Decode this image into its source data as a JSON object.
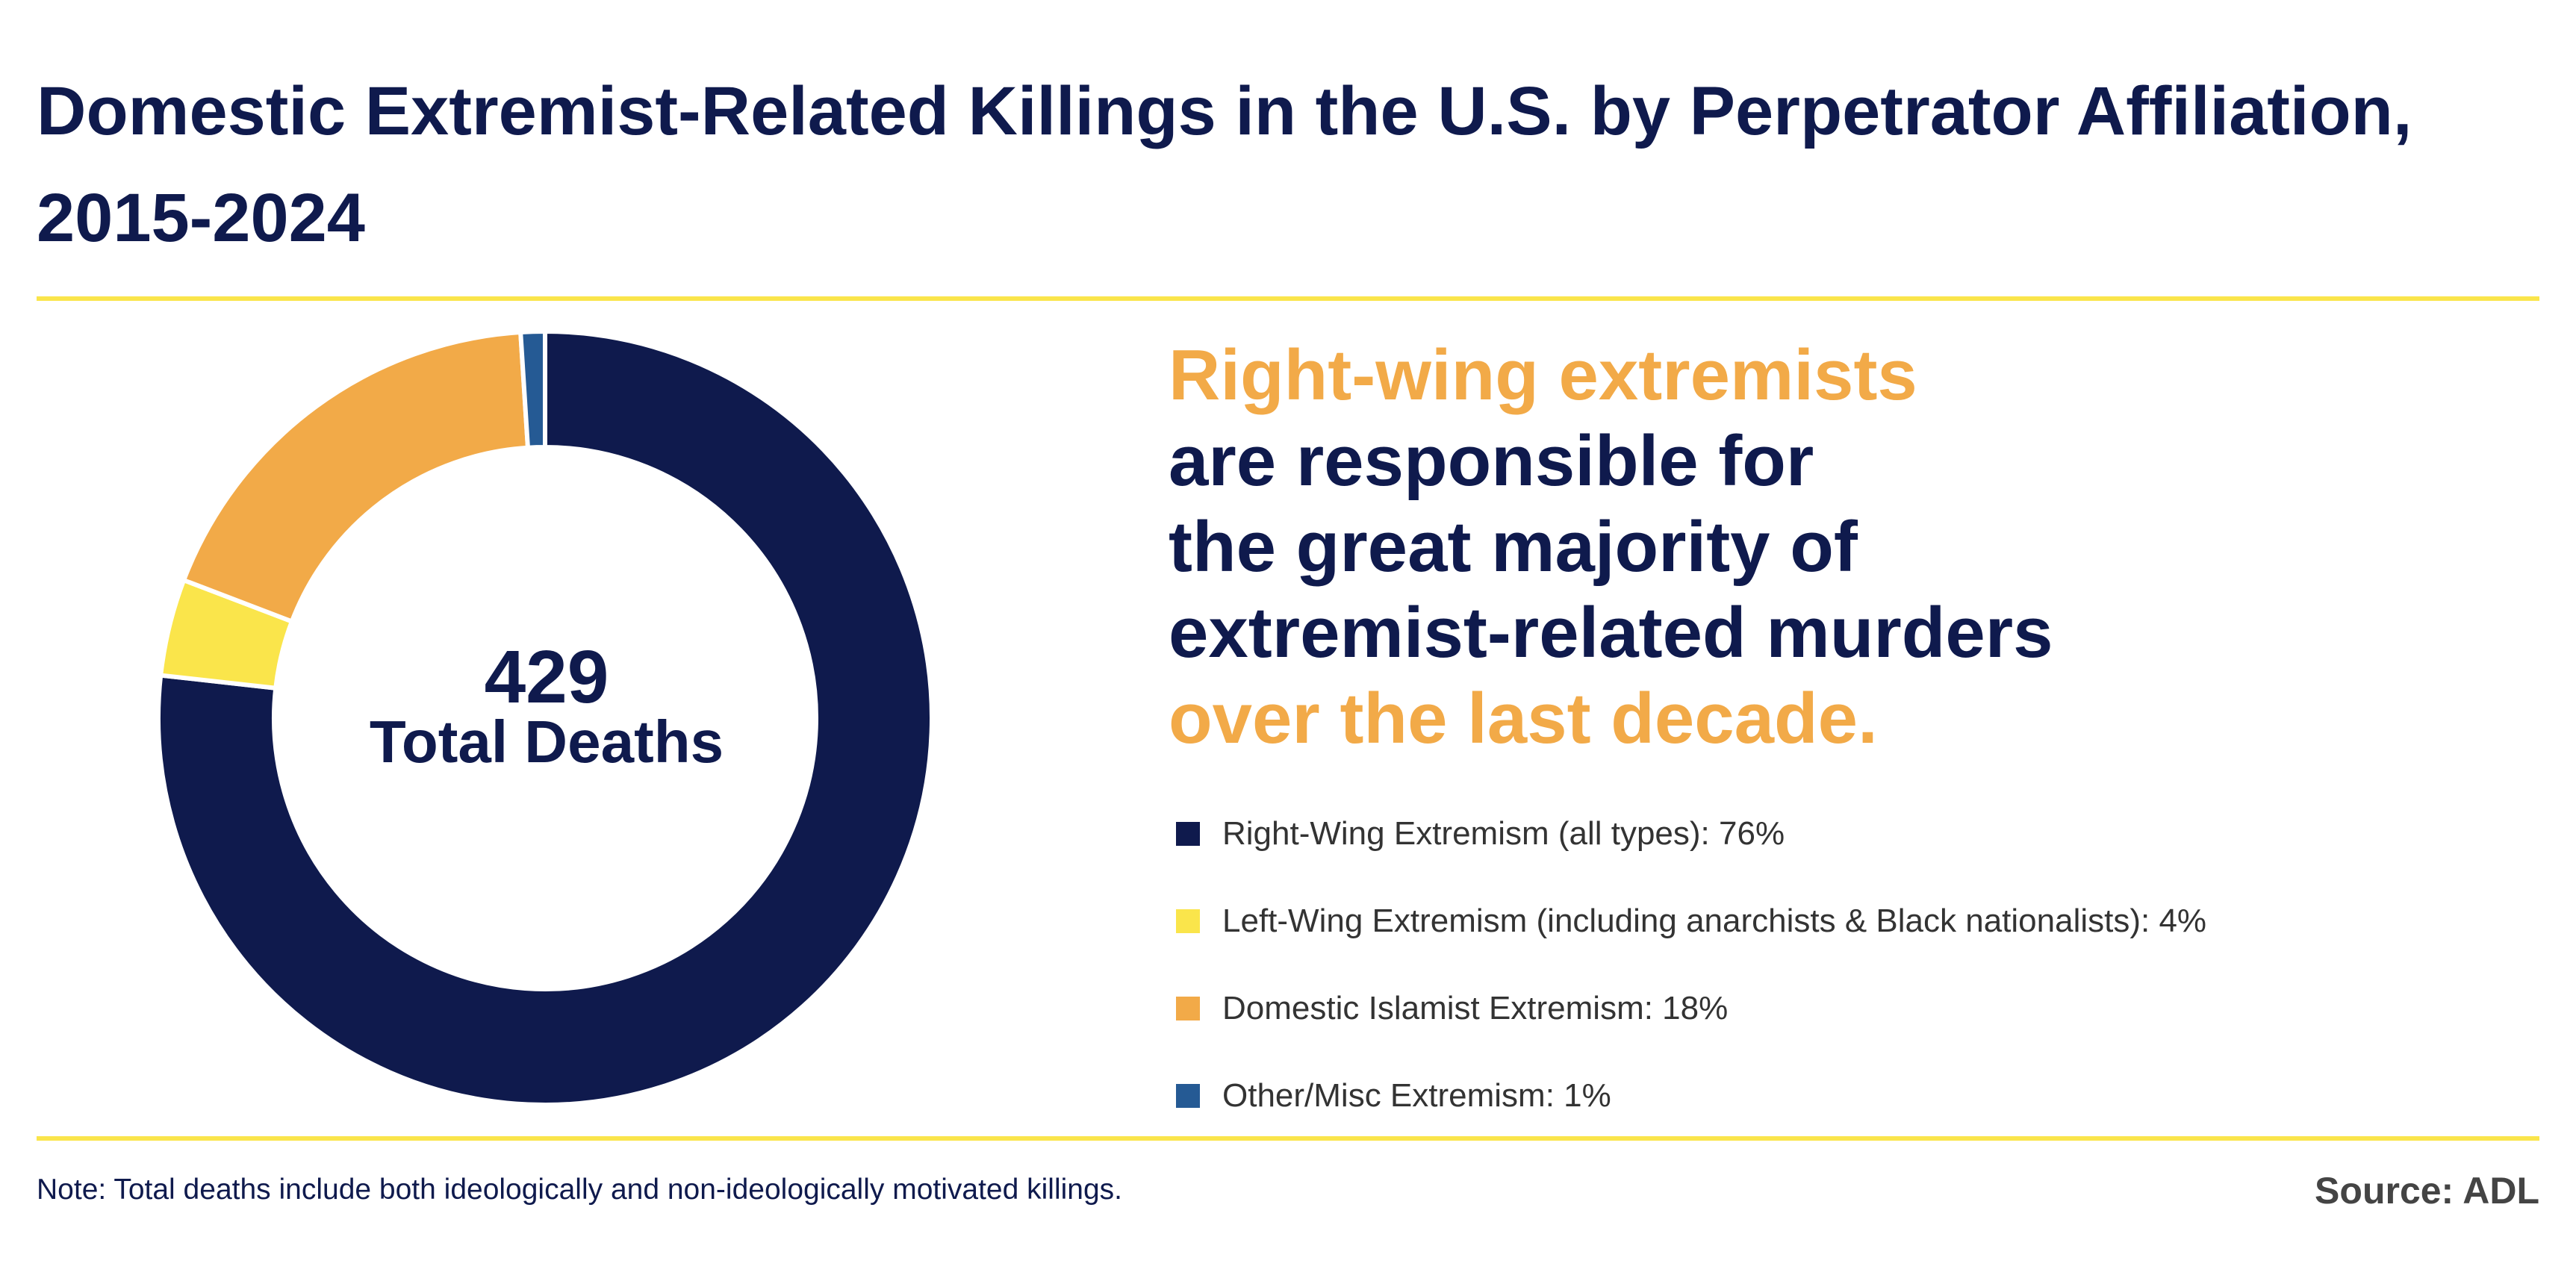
{
  "title": "Domestic Extremist-Related Killings in the U.S. by Perpetrator Affiliation, 2015-2024",
  "center": {
    "value": "429",
    "label": "Total Deaths"
  },
  "headline": {
    "line1": "Right-wing extremists",
    "line2": "are responsible for",
    "line3": "the great majority of",
    "line4": "extremist-related murders",
    "line5": "over the last decade."
  },
  "legend": [
    {
      "label": "Right-Wing Extremism (all types): 76%",
      "color": "#0f1a4d"
    },
    {
      "label": "Left-Wing Extremism (including anarchists & Black nationalists): 4%",
      "color": "#fae54b"
    },
    {
      "label": "Domestic Islamist Extremism: 18%",
      "color": "#f2aa48"
    },
    {
      "label": "Other/Misc Extremism: 1%",
      "color": "#255a94"
    }
  ],
  "note": "Note: Total deaths include both ideologically and non-ideologically motivated killings.",
  "source": "Source: ADL",
  "colors": {
    "navy": "#0f1a4d",
    "accent_orange": "#f2aa48",
    "rule_yellow": "#fae54b"
  },
  "chart_data": {
    "type": "pie",
    "variant": "donut",
    "title": "Domestic Extremist-Related Killings in the U.S. by Perpetrator Affiliation, 2015-2024",
    "categories": [
      "Right-Wing Extremism (all types)",
      "Left-Wing Extremism (including anarchists & Black nationalists)",
      "Domestic Islamist Extremism",
      "Other/Misc Extremism"
    ],
    "values": [
      76,
      4,
      18,
      1
    ],
    "unit": "%",
    "colors": [
      "#0f1a4d",
      "#fae54b",
      "#f2aa48",
      "#255a94"
    ],
    "total": 429,
    "legend_placement": "right"
  }
}
